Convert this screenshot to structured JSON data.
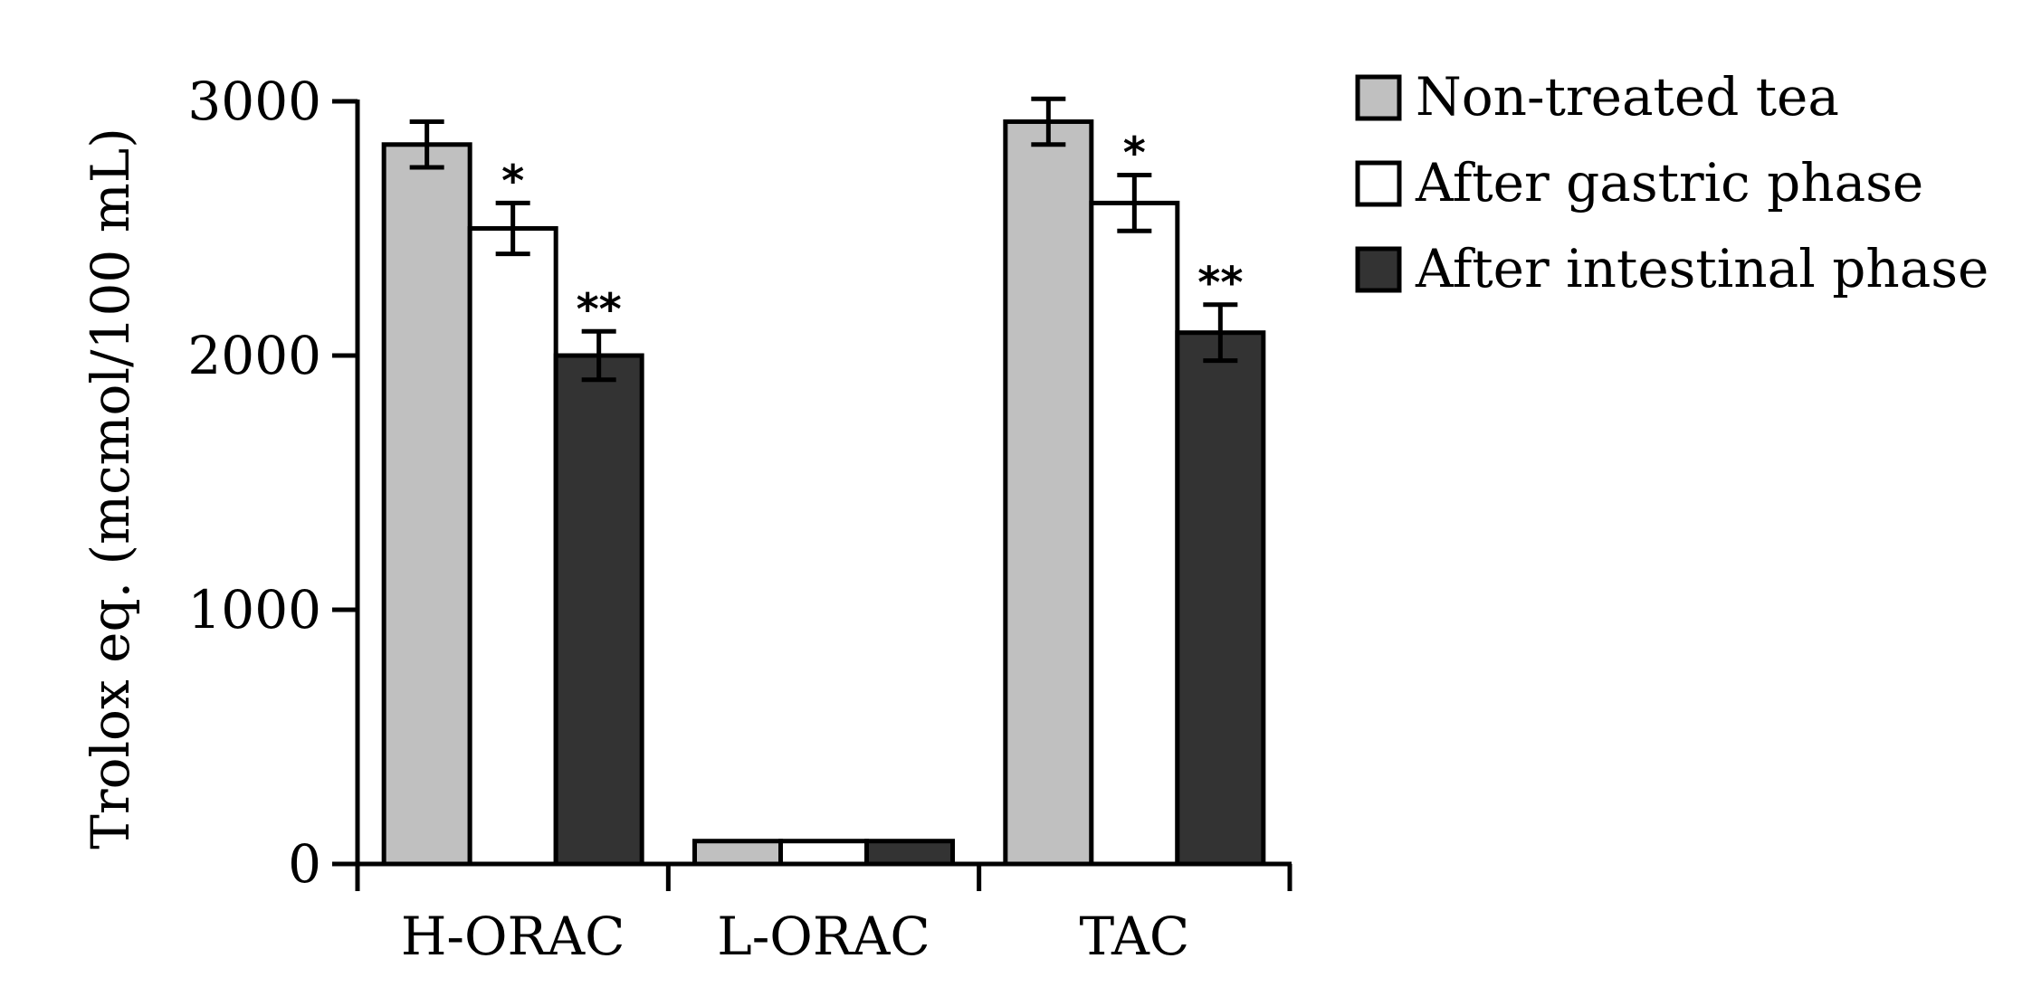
{
  "chart_data": {
    "type": "bar",
    "title": "",
    "xlabel": "",
    "ylabel": "Trolox eq. (mcmol/100 mL)",
    "ylim": [
      0,
      3000
    ],
    "yticks": [
      0,
      1000,
      2000,
      3000
    ],
    "categories": [
      "H-ORAC",
      "L-ORAC",
      "TAC"
    ],
    "grid": false,
    "legend_position": "top-right",
    "series": [
      {
        "name": "Non-treated tea",
        "color": "#c0c0c0",
        "values": [
          2830,
          90,
          2920
        ],
        "errors": [
          90,
          0,
          90
        ],
        "significance": [
          "",
          "",
          ""
        ]
      },
      {
        "name": "After gastric phase",
        "color": "#ffffff",
        "values": [
          2500,
          90,
          2600
        ],
        "errors": [
          100,
          0,
          110
        ],
        "significance": [
          "*",
          "",
          "*"
        ]
      },
      {
        "name": "After intestinal phase",
        "color": "#333333",
        "values": [
          2000,
          90,
          2090
        ],
        "errors": [
          95,
          0,
          110
        ],
        "significance": [
          "**",
          "",
          "**"
        ]
      }
    ]
  }
}
